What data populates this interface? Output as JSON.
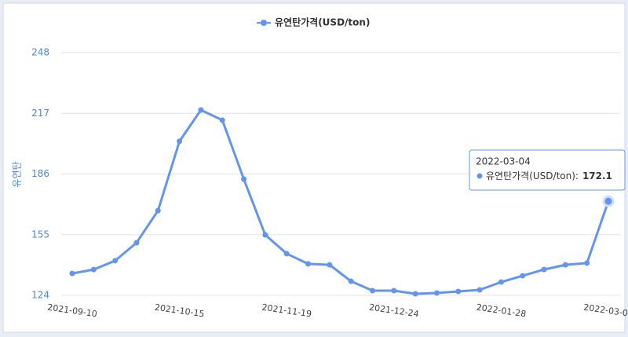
{
  "chart_data": {
    "type": "line",
    "y_label": "유연탄",
    "categories": [
      "2021-09-10",
      null,
      null,
      null,
      null,
      "2021-10-15",
      null,
      null,
      null,
      null,
      "2021-11-19",
      null,
      null,
      null,
      null,
      "2021-12-24",
      null,
      null,
      null,
      null,
      "2022-01-28",
      null,
      null,
      null,
      null,
      "2022-03-04"
    ],
    "series": [
      {
        "name": "유연탄가격(USD/ton)",
        "color": "#6495ed",
        "values": [
          135.2,
          137.2,
          141.7,
          150.9,
          167.3,
          202.7,
          218.7,
          213.5,
          183.4,
          154.9,
          145.3,
          140.1,
          139.6,
          131.2,
          126.4,
          126.4,
          124.8,
          125.2,
          126.0,
          126.8,
          130.8,
          134.0,
          137.2,
          139.6,
          140.5,
          172.1
        ]
      }
    ],
    "ylim": [
      124,
      248
    ],
    "yticks": [
      124,
      155,
      186,
      217,
      248
    ],
    "grid": true,
    "legend": "top",
    "tooltip": {
      "label": "유연탄가격(USD/ton):"
    }
  }
}
